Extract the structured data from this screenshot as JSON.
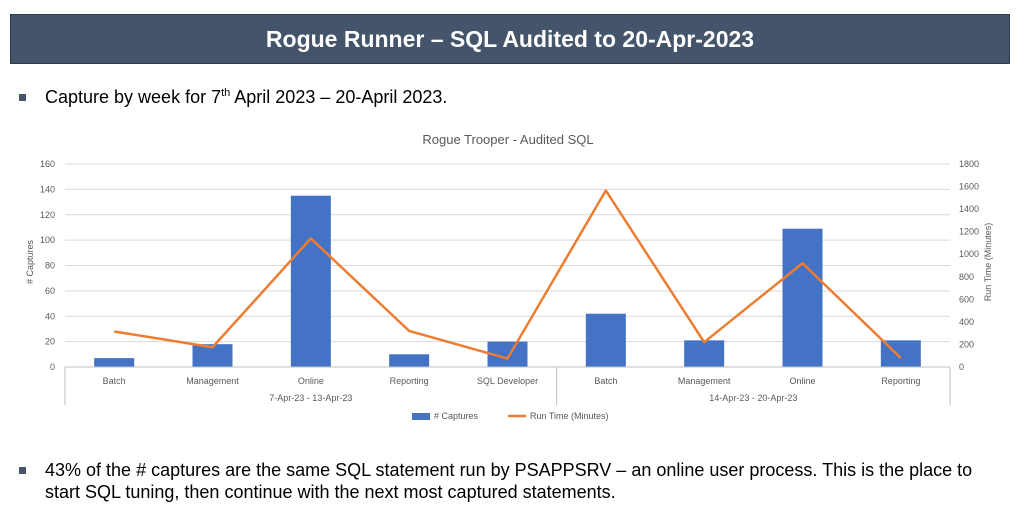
{
  "slide": {
    "title": "Rogue Runner – SQL Audited to 20-Apr-2023",
    "bullet1_pre": "Capture by week for 7",
    "bullet1_sup": "th",
    "bullet1_post": " April 2023 – 20-April 2023.",
    "bullet2": "43% of the # captures are the same SQL statement run by PSAPPSRV – an online user process. This is the place to start SQL tuning, then continue with the next most captured statements."
  },
  "colors": {
    "title_bg": "#44546a",
    "bars": "#4472c4",
    "line": "#ed7d31"
  },
  "chart_data": {
    "type": "bar",
    "title": "Rogue Trooper - Audited SQL",
    "categories": [
      "Batch",
      "Management",
      "Online",
      "Reporting",
      "SQL Developer",
      "Batch",
      "Management",
      "Online",
      "Reporting"
    ],
    "groups": [
      {
        "label": "7-Apr-23 - 13-Apr-23",
        "count": 5
      },
      {
        "label": "14-Apr-23 - 20-Apr-23",
        "count": 4
      }
    ],
    "series": [
      {
        "name": "# Captures",
        "type": "bar",
        "axis": "left",
        "values": [
          7,
          18,
          135,
          10,
          20,
          42,
          21,
          109,
          21
        ]
      },
      {
        "name": "Run Time (Minutes)",
        "type": "line",
        "axis": "right",
        "values": [
          315,
          175,
          1140,
          320,
          75,
          1565,
          220,
          920,
          80
        ]
      }
    ],
    "ylabel": "# Captures",
    "y2label": "Run Time (Minutes)",
    "ylim": [
      0,
      160
    ],
    "y2lim": [
      0,
      1800
    ],
    "yticks": [
      0,
      20,
      40,
      60,
      80,
      100,
      120,
      140,
      160
    ],
    "y2ticks": [
      0,
      200,
      400,
      600,
      800,
      1000,
      1200,
      1400,
      1600,
      1800
    ],
    "grid": true,
    "legend": "bottom"
  }
}
